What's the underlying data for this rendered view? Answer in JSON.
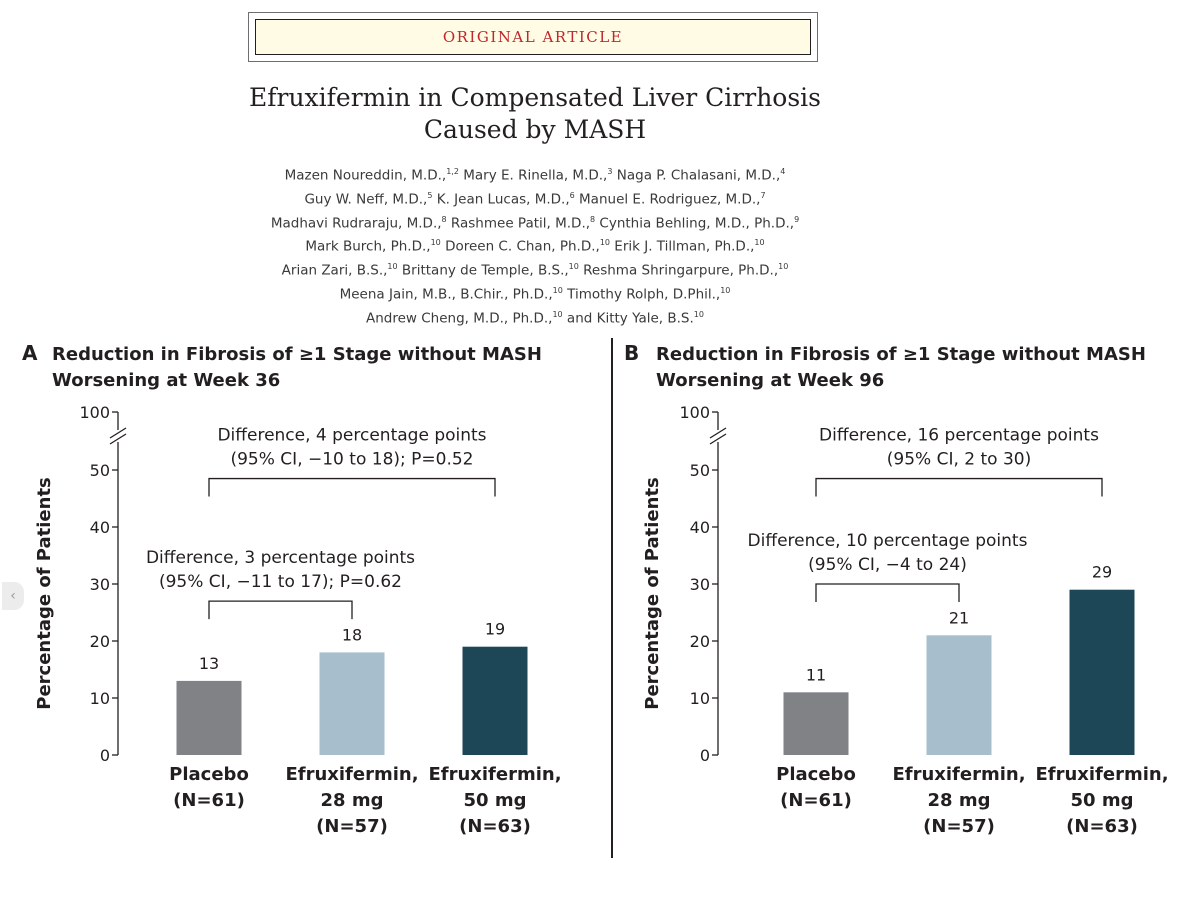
{
  "header": {
    "banner": "ORIGINAL ARTICLE",
    "title_lines": [
      "Efruxifermin in Compensated Liver Cirrhosis",
      "Caused by MASH"
    ],
    "authors": [
      [
        {
          "name": "Mazen Noureddin, M.D.,",
          "sup": "1,2"
        },
        {
          "name": "Mary E. Rinella, M.D.,",
          "sup": "3"
        },
        {
          "name": "Naga P. Chalasani, M.D.,",
          "sup": "4"
        }
      ],
      [
        {
          "name": "Guy W. Neff, M.D.,",
          "sup": "5"
        },
        {
          "name": "K. Jean Lucas, M.D.,",
          "sup": "6"
        },
        {
          "name": "Manuel E. Rodriguez, M.D.,",
          "sup": "7"
        }
      ],
      [
        {
          "name": "Madhavi Rudraraju, M.D.,",
          "sup": "8"
        },
        {
          "name": "Rashmee Patil, M.D.,",
          "sup": "8"
        },
        {
          "name": "Cynthia Behling, M.D., Ph.D.,",
          "sup": "9"
        }
      ],
      [
        {
          "name": "Mark Burch, Ph.D.,",
          "sup": "10"
        },
        {
          "name": "Doreen C. Chan, Ph.D.,",
          "sup": "10"
        },
        {
          "name": "Erik J. Tillman, Ph.D.,",
          "sup": "10"
        }
      ],
      [
        {
          "name": "Arian Zari, B.S.,",
          "sup": "10"
        },
        {
          "name": "Brittany de Temple, B.S.,",
          "sup": "10"
        },
        {
          "name": "Reshma Shringarpure, Ph.D.,",
          "sup": "10"
        }
      ],
      [
        {
          "name": "Meena Jain, M.B., B.Chir., Ph.D.,",
          "sup": "10"
        },
        {
          "name": "Timothy Rolph, D.Phil.,",
          "sup": "10"
        }
      ],
      [
        {
          "name": "Andrew Cheng, M.D., Ph.D.,",
          "sup": "10"
        },
        {
          "name": "and Kitty Yale, B.S.",
          "sup": "10"
        }
      ]
    ]
  },
  "nav": {
    "prev_glyph": "‹"
  },
  "chart_data": [
    {
      "type": "bar",
      "panel_letter": "A",
      "title_lines": [
        "Reduction in Fibrosis of ≥1 Stage without MASH",
        "Worsening at Week 36"
      ],
      "ylabel": "Percentage of Patients",
      "ylim": [
        0,
        55
      ],
      "yticks": [
        0,
        10,
        20,
        30,
        40,
        50
      ],
      "ybreak_label": "100",
      "categories": [
        [
          "Placebo",
          "(N=61)"
        ],
        [
          "Efruxifermin,",
          "28 mg",
          "(N=57)"
        ],
        [
          "Efruxifermin,",
          "50 mg",
          "(N=63)"
        ]
      ],
      "values": [
        13,
        18,
        19
      ],
      "colors": [
        "#808285",
        "#a7bfcc",
        "#1d4657"
      ],
      "comparisons": [
        {
          "from": 0,
          "to": 1,
          "level": 27,
          "lines": [
            "Difference, 3 percentage points",
            "(95% CI, −11 to 17); P=0.62"
          ]
        },
        {
          "from": 0,
          "to": 2,
          "level": 48.5,
          "lines": [
            "Difference, 4 percentage points",
            "(95% CI, −10 to 18); P=0.52"
          ]
        }
      ]
    },
    {
      "type": "bar",
      "panel_letter": "B",
      "title_lines": [
        "Reduction in Fibrosis of ≥1 Stage without MASH",
        "Worsening at Week 96"
      ],
      "ylabel": "Percentage of Patients",
      "ylim": [
        0,
        55
      ],
      "yticks": [
        0,
        10,
        20,
        30,
        40,
        50
      ],
      "ybreak_label": "100",
      "categories": [
        [
          "Placebo",
          "(N=61)"
        ],
        [
          "Efruxifermin,",
          "28 mg",
          "(N=57)"
        ],
        [
          "Efruxifermin,",
          "50 mg",
          "(N=63)"
        ]
      ],
      "values": [
        11,
        21,
        29
      ],
      "colors": [
        "#808285",
        "#a7bfcc",
        "#1d4657"
      ],
      "comparisons": [
        {
          "from": 0,
          "to": 1,
          "level": 30,
          "lines": [
            "Difference, 10 percentage points",
            "(95% CI, −4 to 24)"
          ]
        },
        {
          "from": 0,
          "to": 2,
          "level": 48.5,
          "lines": [
            "Difference, 16 percentage points",
            "(95% CI, 2 to 30)"
          ]
        }
      ]
    }
  ]
}
